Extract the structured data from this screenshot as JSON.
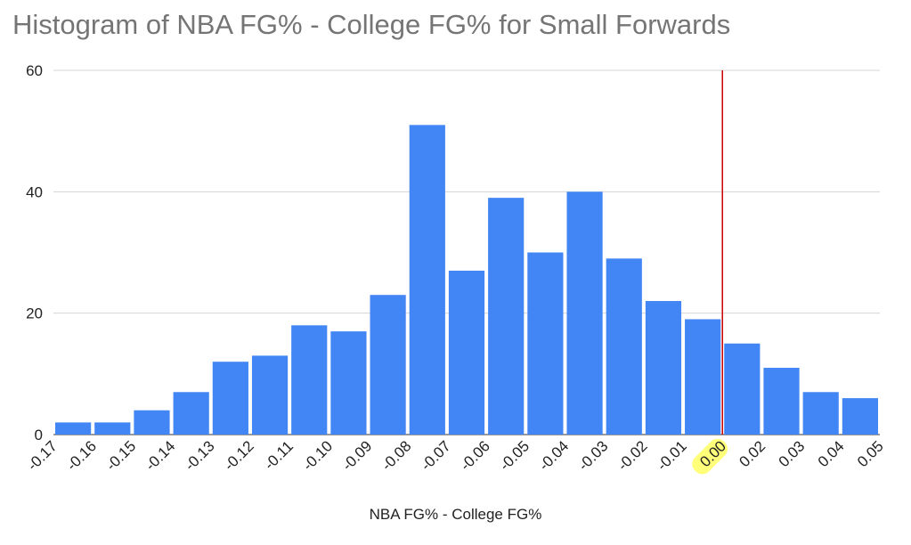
{
  "chart_data": {
    "type": "bar",
    "title": "Histogram of NBA FG% - College FG% for Small Forwards",
    "xlabel": "NBA FG% - College FG%",
    "ylabel": "",
    "ylim": [
      0,
      60
    ],
    "yticks": [
      "0",
      "20",
      "40",
      "60"
    ],
    "x_tick_labels": [
      "-0.17",
      "-0.16",
      "-0.15",
      "-0.14",
      "-0.13",
      "-0.12",
      "-0.11",
      "-0.10",
      "-0.09",
      "-0.08",
      "-0.07",
      "-0.06",
      "-0.05",
      "-0.04",
      "-0.03",
      "-0.02",
      "-0.01",
      "0.00",
      "0.02",
      "0.03",
      "0.04",
      "0.05"
    ],
    "values": [
      2,
      2,
      4,
      7,
      12,
      13,
      18,
      17,
      23,
      51,
      27,
      39,
      30,
      40,
      29,
      22,
      19,
      15,
      11,
      7,
      6
    ],
    "bar_color": "#4285f4",
    "reference_line": {
      "x": "0.00",
      "color": "#cc0000"
    },
    "highlighted_tick": {
      "label": "0.00",
      "color": "#ffff7a"
    },
    "grid": true,
    "legend": "none"
  }
}
